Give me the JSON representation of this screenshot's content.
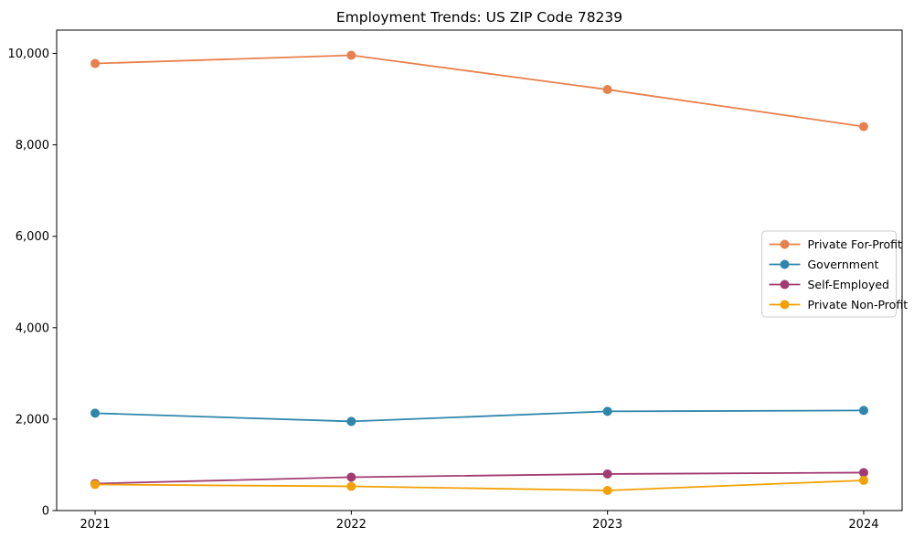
{
  "page": {
    "title": "Employment Trends: US ZIP Code 78239"
  },
  "chart_data": {
    "type": "line",
    "title": "Employment Trends: US ZIP Code 78239",
    "x": [
      2021,
      2022,
      2023,
      2024
    ],
    "x_tick_labels": [
      "2021",
      "2022",
      "2023",
      "2024"
    ],
    "series": [
      {
        "name": "Private For-Profit",
        "color": "#E8804D",
        "values": [
          9780,
          9960,
          9210,
          8400
        ]
      },
      {
        "name": "Government",
        "color": "#2E86AB",
        "values": [
          2130,
          1950,
          2170,
          2190
        ]
      },
      {
        "name": "Self-Employed",
        "color": "#A23B72",
        "values": [
          590,
          730,
          800,
          830
        ]
      },
      {
        "name": "Private Non-Profit",
        "color": "#F2A104",
        "values": [
          570,
          530,
          440,
          660
        ]
      }
    ],
    "xlim": [
      2020.85,
      2024.15
    ],
    "ylim": [
      0,
      10510
    ],
    "y_ticks": [
      {
        "value": 0,
        "label": "0"
      },
      {
        "value": 2000,
        "label": "2,000"
      },
      {
        "value": 4000,
        "label": "4,000"
      },
      {
        "value": 6000,
        "label": "6,000"
      },
      {
        "value": 8000,
        "label": "8,000"
      },
      {
        "value": 10000,
        "label": "10,000"
      }
    ],
    "grid": false,
    "marker": "circle",
    "legend": {
      "position": "center right",
      "border_color": "#cccccc",
      "background": "#ffffff"
    },
    "axis_color": "#000000"
  }
}
